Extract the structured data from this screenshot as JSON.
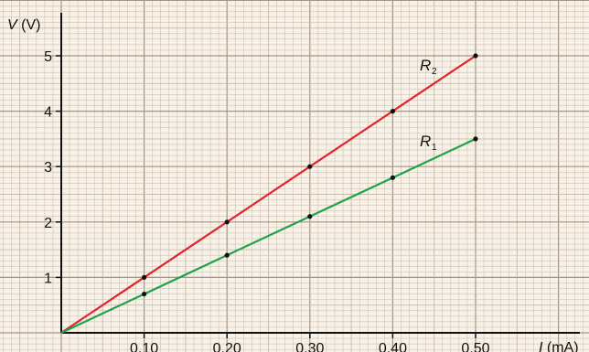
{
  "chart_data": {
    "type": "line",
    "xlabel_symbol": "I",
    "xlabel_unit": " (mA)",
    "ylabel_symbol": "V",
    "ylabel_unit": " (V)",
    "xlim": [
      0,
      0.52
    ],
    "ylim": [
      0,
      5.3
    ],
    "x_ticks": [
      0.1,
      0.2,
      0.3,
      0.4,
      0.5
    ],
    "x_tick_labels": [
      "0.10",
      "0.20",
      "0.30",
      "0.40",
      "0.50"
    ],
    "y_ticks": [
      1,
      2,
      3,
      4,
      5
    ],
    "y_tick_labels": [
      "1",
      "2",
      "3",
      "4",
      "5"
    ],
    "grid": true,
    "series": [
      {
        "name": "R",
        "subscript": "2",
        "color": "#e0262b",
        "x": [
          0,
          0.1,
          0.2,
          0.3,
          0.4,
          0.5
        ],
        "y": [
          0,
          1.0,
          2.0,
          3.0,
          4.0,
          5.0
        ]
      },
      {
        "name": "R",
        "subscript": "1",
        "color": "#1fa34a",
        "x": [
          0,
          0.1,
          0.2,
          0.3,
          0.4,
          0.5
        ],
        "y": [
          0,
          0.7,
          1.4,
          2.1,
          2.8,
          3.5
        ]
      }
    ]
  },
  "colors": {
    "background": "#f7f1e8",
    "grid_minor": "#c9b9aa",
    "grid_major": "#a89484",
    "axis": "#111111",
    "point": "#111111"
  }
}
